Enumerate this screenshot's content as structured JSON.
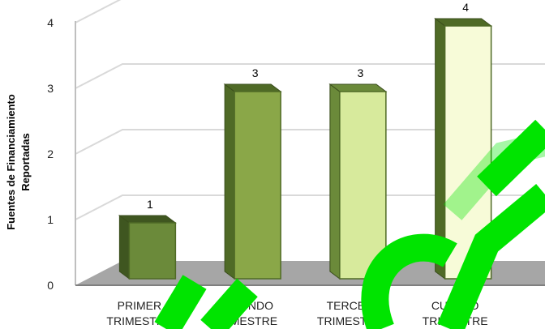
{
  "chart_data": {
    "type": "bar",
    "categories": [
      "PRIMER TRIMESTRE",
      "SEGUNDO TRIMESTRE",
      "TERCER TRIMESTRE",
      "CUARTO TRIMESTRE"
    ],
    "category_lines": [
      [
        "PRIMER",
        "TRIMESTRE"
      ],
      [
        "SEGUNDO",
        "TRIMESTRE"
      ],
      [
        "TERCER",
        "TRIMESTRE"
      ],
      [
        "CUARTO",
        "TRIMESTRE"
      ]
    ],
    "values": [
      1,
      3,
      3,
      4
    ],
    "data_labels": [
      "1",
      "3",
      "3",
      "4"
    ],
    "title": "",
    "xlabel": "",
    "ylabel": "Fuentes de Financiamiento Reportadas",
    "ylabel_lines": [
      "Fuentes de Financiamiento",
      "Reportadas"
    ],
    "yticks": [
      "0",
      "1",
      "2",
      "3",
      "4"
    ],
    "ylim": [
      0,
      4
    ],
    "grid": true,
    "legend": "none",
    "bar_colors": [
      "#6b8a3a",
      "#8aa748",
      "#d7ea9c",
      "#f7fbd8"
    ],
    "bar_side_colors": [
      "#3f5620",
      "#4f6a26",
      "#6b8a3a",
      "#4f6a26"
    ],
    "floor_color": "#a6a6a6",
    "watermark_color": "#00e400"
  }
}
